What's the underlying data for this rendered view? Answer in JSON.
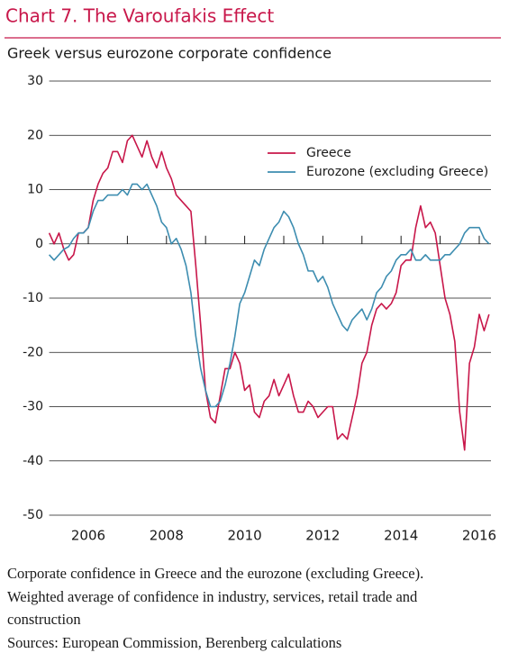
{
  "chart_data": {
    "type": "line",
    "title": "Chart 7. The Varoufakis Effect",
    "subtitle": "Greek versus eurozone corporate confidence",
    "x": [
      2005,
      2005.125,
      2005.25,
      2005.375,
      2005.5,
      2005.625,
      2005.75,
      2005.875,
      2006,
      2006.125,
      2006.25,
      2006.375,
      2006.5,
      2006.625,
      2006.75,
      2006.875,
      2007,
      2007.125,
      2007.25,
      2007.375,
      2007.5,
      2007.625,
      2007.75,
      2007.875,
      2008,
      2008.125,
      2008.25,
      2008.375,
      2008.5,
      2008.625,
      2008.75,
      2008.875,
      2009,
      2009.125,
      2009.25,
      2009.375,
      2009.5,
      2009.625,
      2009.75,
      2009.875,
      2010,
      2010.125,
      2010.25,
      2010.375,
      2010.5,
      2010.625,
      2010.75,
      2010.875,
      2011,
      2011.125,
      2011.25,
      2011.375,
      2011.5,
      2011.625,
      2011.75,
      2011.875,
      2012,
      2012.125,
      2012.25,
      2012.375,
      2012.5,
      2012.625,
      2012.75,
      2012.875,
      2013,
      2013.125,
      2013.25,
      2013.375,
      2013.5,
      2013.625,
      2013.75,
      2013.875,
      2014,
      2014.125,
      2014.25,
      2014.375,
      2014.5,
      2014.625,
      2014.75,
      2014.875,
      2015,
      2015.125,
      2015.25,
      2015.375,
      2015.5,
      2015.625,
      2015.75,
      2015.875,
      2016,
      2016.125,
      2016.25
    ],
    "series": [
      {
        "name": "Greece",
        "color": "#c8174a",
        "values": [
          2,
          0,
          2,
          -1,
          -3,
          -2,
          2,
          2,
          3,
          8,
          11,
          13,
          14,
          17,
          17,
          15,
          19,
          20,
          18,
          16,
          19,
          16,
          14,
          17,
          14,
          12,
          9,
          8,
          7,
          6,
          -4,
          -15,
          -27,
          -32,
          -33,
          -28,
          -23,
          -23,
          -20,
          -22,
          -27,
          -26,
          -31,
          -32,
          -29,
          -28,
          -25,
          -28,
          -26,
          -24,
          -28,
          -31,
          -31,
          -29,
          -30,
          -32,
          -31,
          -30,
          -30,
          -36,
          -35,
          -36,
          -32,
          -28,
          -22,
          -20,
          -15,
          -12,
          -11,
          -12,
          -11,
          -9,
          -4,
          -3,
          -3,
          3,
          7,
          3,
          4,
          2,
          -4,
          -10,
          -13,
          -18,
          -31,
          -38,
          -22,
          -19,
          -13,
          -16,
          -13
        ]
      },
      {
        "name": "Eurozone (excluding Greece)",
        "color": "#3d8db0",
        "values": [
          -2,
          -3,
          -2,
          -1,
          -0.5,
          1,
          2,
          2,
          3,
          6,
          8,
          8,
          9,
          9,
          9,
          10,
          9,
          11,
          11,
          10,
          11,
          9,
          7,
          4,
          3,
          0,
          1,
          -1,
          -4,
          -9,
          -17,
          -23,
          -27,
          -30,
          -30,
          -29,
          -26,
          -22,
          -17,
          -11,
          -9,
          -6,
          -3,
          -4,
          -1,
          1,
          3,
          4,
          6,
          5,
          3,
          0,
          -2,
          -5,
          -5,
          -7,
          -6,
          -8,
          -11,
          -13,
          -15,
          -16,
          -14,
          -13,
          -12,
          -14,
          -12,
          -9,
          -8,
          -6,
          -5,
          -3,
          -2,
          -2,
          -1,
          -3,
          -3,
          -2,
          -3,
          -3,
          -3,
          -2,
          -2,
          -1,
          0,
          2,
          3,
          3,
          3,
          1,
          0
        ]
      }
    ],
    "xlim": [
      2005,
      2016.3
    ],
    "xticks": [
      2006,
      2008,
      2010,
      2012,
      2014,
      2016
    ],
    "xminor_ticks": [
      2007,
      2009,
      2011,
      2013,
      2015
    ],
    "ylim": [
      -50,
      30
    ],
    "yticks": [
      -50,
      -40,
      -30,
      -20,
      -10,
      0,
      10,
      20,
      30
    ],
    "grid": true,
    "legend": "upper right",
    "notes": [
      "Corporate confidence in Greece and the eurozone (excluding Greece).",
      "Weighted average of confidence in industry, services, retail trade and",
      "construction",
      "Sources: European Commission, Berenberg calculations"
    ]
  }
}
